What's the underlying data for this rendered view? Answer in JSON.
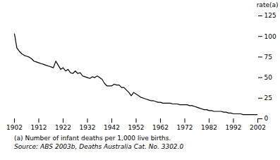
{
  "chart_data": {
    "type": "line",
    "ylabel": "rate(a)",
    "annotations": [
      "(a) Number of infant deaths per 1,000 live births.",
      "Source: ABS 2003b, Deaths Australia Cat. No. 3302.0"
    ],
    "x": [
      1902,
      1903,
      1904,
      1905,
      1906,
      1907,
      1908,
      1909,
      1910,
      1911,
      1912,
      1913,
      1914,
      1915,
      1916,
      1917,
      1918,
      1919,
      1920,
      1921,
      1922,
      1923,
      1924,
      1925,
      1926,
      1927,
      1928,
      1929,
      1930,
      1931,
      1932,
      1933,
      1934,
      1935,
      1936,
      1937,
      1938,
      1939,
      1940,
      1941,
      1942,
      1943,
      1944,
      1945,
      1946,
      1947,
      1948,
      1949,
      1950,
      1951,
      1952,
      1953,
      1954,
      1955,
      1956,
      1957,
      1958,
      1959,
      1960,
      1961,
      1962,
      1963,
      1964,
      1965,
      1966,
      1967,
      1968,
      1969,
      1970,
      1971,
      1972,
      1973,
      1974,
      1975,
      1976,
      1977,
      1978,
      1979,
      1980,
      1981,
      1982,
      1983,
      1984,
      1985,
      1986,
      1987,
      1988,
      1989,
      1990,
      1991,
      1992,
      1993,
      1994,
      1995,
      1996,
      1997,
      1998,
      1999,
      2000,
      2001,
      2002
    ],
    "values": [
      103,
      86,
      82,
      79,
      77,
      76,
      75,
      73,
      70,
      69,
      68,
      67,
      66,
      65,
      64,
      63,
      62,
      70,
      65,
      60,
      62,
      58,
      60,
      56,
      55,
      58,
      55,
      56,
      52,
      51,
      50,
      49,
      51,
      50,
      52,
      50,
      48,
      43,
      40,
      40,
      40,
      42,
      41,
      41,
      38,
      38,
      35,
      32,
      28,
      32,
      30,
      28,
      26,
      25,
      24,
      23,
      22,
      22,
      21,
      20,
      20,
      19,
      19,
      19,
      19,
      18,
      18,
      18,
      17,
      17,
      17,
      17,
      16,
      16,
      15,
      14,
      13,
      12,
      11,
      11,
      10,
      10,
      9,
      9,
      9,
      9,
      8,
      8,
      7,
      7,
      6,
      6,
      6,
      6,
      5,
      5,
      5,
      5,
      5,
      5,
      5
    ],
    "color": "#000000",
    "xlim": [
      1902,
      2002
    ],
    "xticks": [
      1902,
      1912,
      1922,
      1932,
      1942,
      1952,
      1962,
      1972,
      1982,
      1992,
      2002
    ],
    "ylim": [
      0,
      125
    ],
    "yticks": [
      0,
      25,
      50,
      75,
      100,
      125
    ],
    "grid": false
  }
}
